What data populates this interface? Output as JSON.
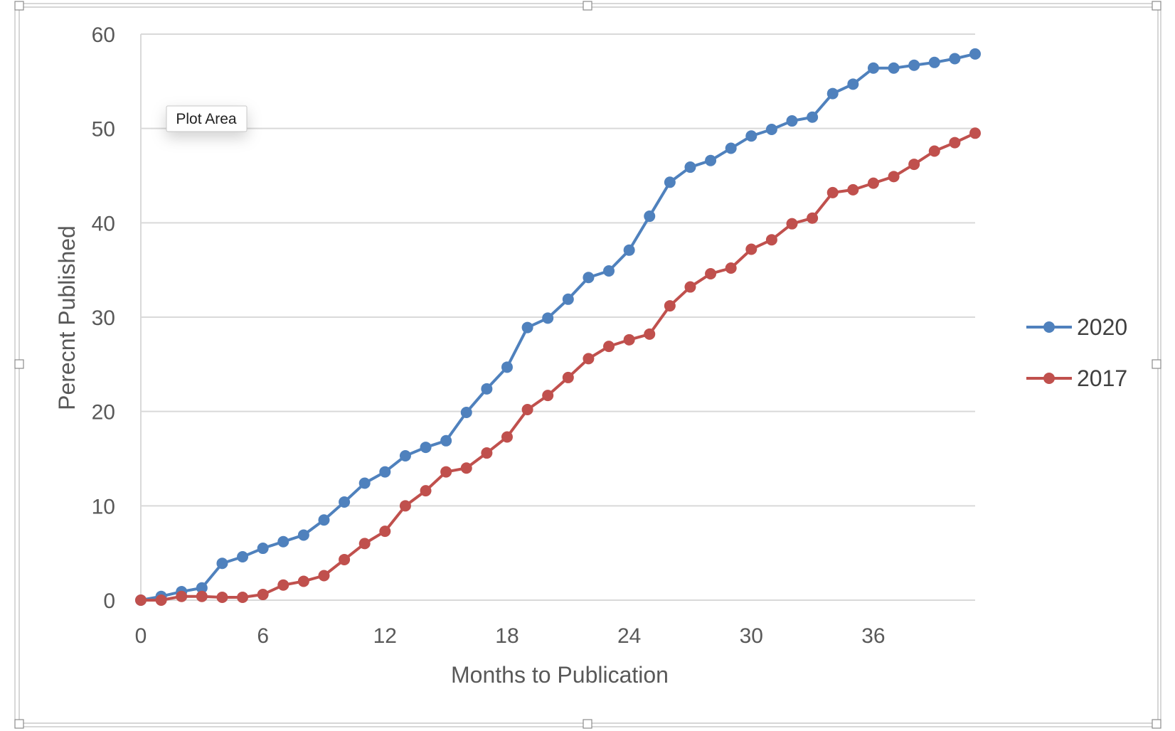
{
  "tooltip": {
    "label": "Plot Area"
  },
  "colors": {
    "2020": "#4f81bd",
    "2017": "#c0504d",
    "grid": "#d9d9d9",
    "text": "#595959"
  },
  "chart_data": {
    "type": "line",
    "title": "",
    "xlabel": "Months to Publication",
    "ylabel": "Perecnt Published",
    "xlim": [
      0,
      41
    ],
    "ylim": [
      0,
      60
    ],
    "x_ticks": [
      0,
      6,
      12,
      18,
      24,
      30,
      36
    ],
    "y_ticks": [
      0,
      10,
      20,
      30,
      40,
      50,
      60
    ],
    "grid": true,
    "legend_position": "right",
    "x": [
      0,
      1,
      2,
      3,
      4,
      5,
      6,
      7,
      8,
      9,
      10,
      11,
      12,
      13,
      14,
      15,
      16,
      17,
      18,
      19,
      20,
      21,
      22,
      23,
      24,
      25,
      26,
      27,
      28,
      29,
      30,
      31,
      32,
      33,
      34,
      35,
      36,
      37,
      38,
      39,
      40,
      41
    ],
    "series": [
      {
        "name": "2020",
        "color": "#4f81bd",
        "values": [
          0,
          0.4,
          0.9,
          1.3,
          3.9,
          4.6,
          5.5,
          6.2,
          6.9,
          8.5,
          10.4,
          12.4,
          13.6,
          15.3,
          16.2,
          16.9,
          19.9,
          22.4,
          24.7,
          28.9,
          29.9,
          31.9,
          34.2,
          34.9,
          37.1,
          40.7,
          44.3,
          45.9,
          46.6,
          47.9,
          49.2,
          49.9,
          50.8,
          51.2,
          53.7,
          54.7,
          56.4,
          56.4,
          56.7,
          57.0,
          57.4,
          57.9
        ]
      },
      {
        "name": "2017",
        "color": "#c0504d",
        "values": [
          0,
          0,
          0.4,
          0.4,
          0.3,
          0.3,
          0.6,
          1.6,
          2.0,
          2.6,
          4.3,
          6.0,
          7.3,
          10.0,
          11.6,
          13.6,
          14.0,
          15.6,
          17.3,
          20.2,
          21.7,
          23.6,
          25.6,
          26.9,
          27.6,
          28.2,
          31.2,
          33.2,
          34.6,
          35.2,
          37.2,
          38.2,
          39.9,
          40.5,
          43.2,
          43.5,
          44.2,
          44.9,
          46.2,
          47.6,
          48.5,
          49.5
        ]
      }
    ]
  }
}
